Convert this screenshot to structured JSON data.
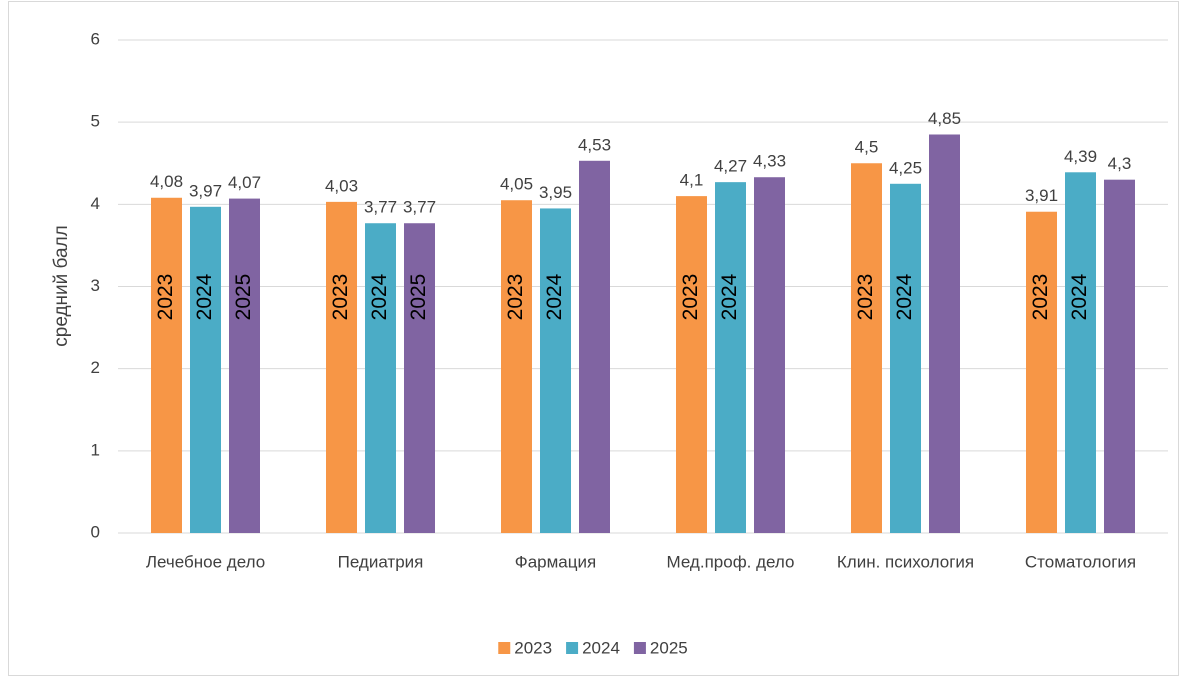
{
  "chart_data": {
    "type": "bar",
    "y_label": "средний балл",
    "categories": [
      "Лечебное дело",
      "Педиатрия",
      "Фармация",
      "Мед.проф. дело",
      "Клин. психология",
      "Стоматология"
    ],
    "series": [
      {
        "name": "2023",
        "color": "#f79646",
        "values": [
          4.08,
          4.03,
          4.05,
          4.1,
          4.5,
          3.91
        ],
        "value_labels": [
          "4,08",
          "4,03",
          "4,05",
          "4,1",
          "4,5",
          "3,91"
        ],
        "inner_labels": [
          true,
          true,
          true,
          true,
          true,
          true
        ]
      },
      {
        "name": "2024",
        "color": "#4bacc6",
        "values": [
          3.97,
          3.77,
          3.95,
          4.27,
          4.25,
          4.39
        ],
        "value_labels": [
          "3,97",
          "3,77",
          "3,95",
          "4,27",
          "4,25",
          "4,39"
        ],
        "inner_labels": [
          true,
          true,
          true,
          true,
          true,
          true
        ]
      },
      {
        "name": "2025",
        "color": "#8064a2",
        "values": [
          4.07,
          3.77,
          4.53,
          4.33,
          4.85,
          4.3
        ],
        "value_labels": [
          "4,07",
          "3,77",
          "4,53",
          "4,33",
          "4,85",
          "4,3"
        ],
        "inner_labels": [
          true,
          true,
          false,
          false,
          false,
          false
        ]
      }
    ],
    "ylim": [
      0,
      6
    ],
    "yticks": [
      0,
      1,
      2,
      3,
      4,
      5,
      6
    ],
    "grid": true,
    "legend": "bottom"
  }
}
